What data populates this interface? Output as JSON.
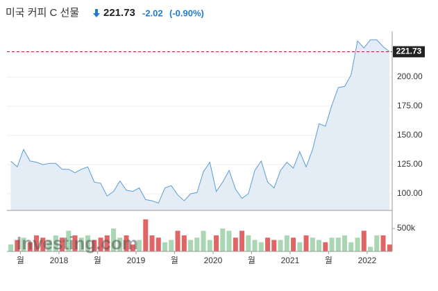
{
  "chart_data": {
    "type": "area",
    "title": "미국 커피 C 선물",
    "price": 221.73,
    "change": "-2.02",
    "change_pct": "(-0.90%)",
    "watermark": "Investing.com",
    "color": "#5b9bd5",
    "fill": "#e4edf6",
    "grid": true,
    "x": [
      -7.5,
      -6.5,
      -5.5,
      -4.5,
      -3.5,
      -2.5,
      -1.5,
      -0.5,
      0.5,
      1.5,
      2.5,
      3.5,
      4.5,
      5.5,
      6.5,
      7.5,
      8.5,
      9.5,
      10.5,
      11.5,
      12.5,
      13.5,
      14.5,
      15.5,
      16.5,
      17.5,
      18.5,
      19.5,
      20.5,
      21.5,
      22.5,
      23.5,
      24.5,
      25.5,
      26.5,
      27.5,
      28.5,
      29.5,
      30.5,
      31.5,
      32.5,
      33.5,
      34.5,
      35.5,
      36.5,
      37.5,
      38.5,
      39.5,
      40.5,
      41.5,
      42.5,
      43.5,
      44.5,
      45.5,
      46.5,
      47.5,
      48.5,
      49.5,
      50.5,
      51.5
    ],
    "values": [
      128,
      123,
      138,
      128,
      127,
      125,
      126,
      126,
      121,
      121,
      118,
      121,
      123,
      110,
      109,
      98,
      102,
      111,
      103,
      102,
      105,
      95,
      94,
      92,
      105,
      107,
      99,
      94,
      100,
      101,
      119,
      127,
      102,
      110,
      120,
      104,
      96,
      100,
      120,
      128,
      110,
      105,
      120,
      127,
      122,
      136,
      123,
      138,
      160,
      158,
      176,
      191,
      192,
      202,
      231,
      225,
      232,
      232,
      226,
      221.73
    ],
    "volume": [
      150000,
      250000,
      300000,
      200000,
      350000,
      300000,
      250000,
      350000,
      300000,
      450000,
      350000,
      300000,
      350000,
      250000,
      300000,
      350000,
      500000,
      300000,
      350000,
      150000,
      250000,
      700000,
      350000,
      300000,
      200000,
      250000,
      450000,
      350000,
      250000,
      300000,
      450000,
      250000,
      350000,
      500000,
      450000,
      300000,
      450000,
      350000,
      250000,
      200000,
      300000,
      250000,
      250000,
      350000,
      300000,
      200000,
      350000,
      300000,
      250000,
      200000,
      300000,
      300000,
      350000,
      200000,
      300000,
      450000,
      100000,
      350000,
      350000,
      150000
    ],
    "up_color": "#a9d6b3",
    "down_color": "#e06666",
    "xlim": [
      -8.1,
      51.9
    ],
    "xticks": [
      {
        "value": -6,
        "label": "월"
      },
      {
        "value": 0,
        "label": "2018"
      },
      {
        "value": 6,
        "label": "월"
      },
      {
        "value": 12,
        "label": "2019"
      },
      {
        "value": 18,
        "label": "월"
      },
      {
        "value": 24,
        "label": "2020"
      },
      {
        "value": 30,
        "label": "월"
      },
      {
        "value": 36,
        "label": "2021"
      },
      {
        "value": 42,
        "label": "월"
      },
      {
        "value": 48,
        "label": "2022"
      }
    ],
    "ylim": [
      85.7,
      239.3
    ],
    "yticks": [
      {
        "value": 100,
        "label": "100.00"
      },
      {
        "value": 125,
        "label": "125.00"
      },
      {
        "value": 150,
        "label": "150.00"
      },
      {
        "value": 175,
        "label": "175.00"
      },
      {
        "value": 200,
        "label": "200.00"
      }
    ],
    "vlim": [
      0,
      788000
    ],
    "vticks": [
      {
        "value": 500000,
        "label": "500k"
      }
    ]
  }
}
